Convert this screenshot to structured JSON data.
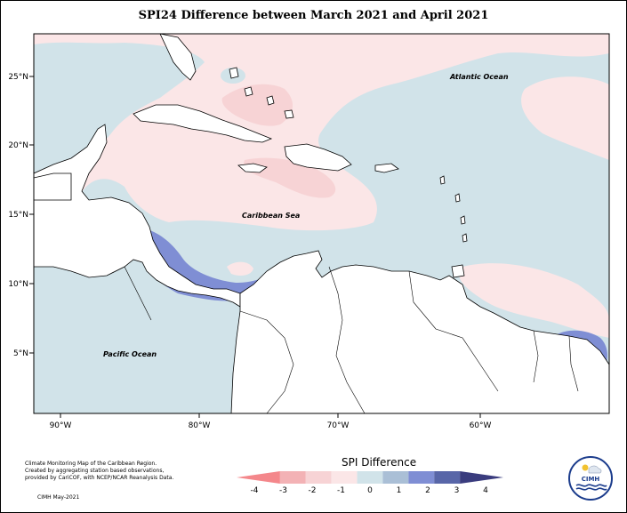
{
  "title": "SPI24 Difference between March 2021 and April 2021",
  "map": {
    "lat_labels": [
      "25°N",
      "20°N",
      "15°N",
      "10°N",
      "5°N"
    ],
    "lon_labels": [
      "90°W",
      "80°W",
      "70°W",
      "60°W"
    ],
    "place_labels": {
      "atlantic": "Atlantic Ocean",
      "caribbean": "Caribbean Sea",
      "pacific": "Pacific Ocean"
    }
  },
  "legend": {
    "title": "SPI Difference",
    "ticks": [
      "-4",
      "-3",
      "-2",
      "-1",
      "0",
      "1",
      "2",
      "3",
      "4"
    ],
    "colors": [
      "#f4878b",
      "#f3b2b5",
      "#f7d3d5",
      "#fbe6e7",
      "#d1e3e9",
      "#aabfd6",
      "#7f8ed4",
      "#5866a8",
      "#3a3c7e"
    ]
  },
  "credits": {
    "line1": "Climate Monitoring Map of the Caribbean Region.",
    "line2": "Created by aggregating station based observations,",
    "line3": "provided by CariCOF, with NCEP/NCAR Reanalysis Data.",
    "stamp": "CIMH May-2021"
  },
  "logo": {
    "text": "CIMH"
  }
}
